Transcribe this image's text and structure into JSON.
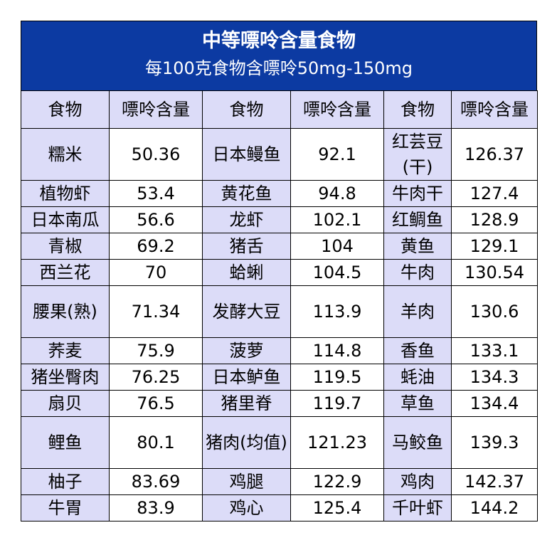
{
  "header": {
    "title": "中等嘌呤含量食物",
    "subtitle": "每100克食物含嘌呤50mg-150mg"
  },
  "columns": [
    "食物",
    "嘌呤含量",
    "食物",
    "嘌呤含量",
    "食物",
    "嘌呤含量"
  ],
  "rows": [
    [
      "糯米",
      "50.36",
      "日本鳗鱼",
      "92.1",
      "红芸豆(干)",
      "126.37"
    ],
    [
      "植物虾",
      "53.4",
      "黄花鱼",
      "94.8",
      "牛肉干",
      "127.4"
    ],
    [
      "日本南瓜",
      "56.6",
      "龙虾",
      "102.1",
      "红鲷鱼",
      "128.9"
    ],
    [
      "青椒",
      "69.2",
      "猪舌",
      "104",
      "黄鱼",
      "129.1"
    ],
    [
      "西兰花",
      "70",
      "蛤蜊",
      "104.5",
      "牛肉",
      "130.54"
    ],
    [
      "腰果(熟)",
      "71.34",
      "发酵大豆",
      "113.9",
      "羊肉",
      "130.6"
    ],
    [
      "荞麦",
      "75.9",
      "菠萝",
      "114.8",
      "香鱼",
      "133.1"
    ],
    [
      "猪坐臀肉",
      "76.25",
      "日本鲈鱼",
      "119.5",
      "蚝油",
      "134.3"
    ],
    [
      "扇贝",
      "76.5",
      "猪里脊",
      "119.7",
      "草鱼",
      "134.4"
    ],
    [
      "鲤鱼",
      "80.1",
      "猪肉(均值)",
      "121.23",
      "马鲛鱼",
      "139.3"
    ],
    [
      "柚子",
      "83.69",
      "鸡腿",
      "122.9",
      "鸡肉",
      "142.37"
    ],
    [
      "牛胃",
      "83.9",
      "鸡心",
      "125.4",
      "千叶虾",
      "144.2"
    ]
  ]
}
